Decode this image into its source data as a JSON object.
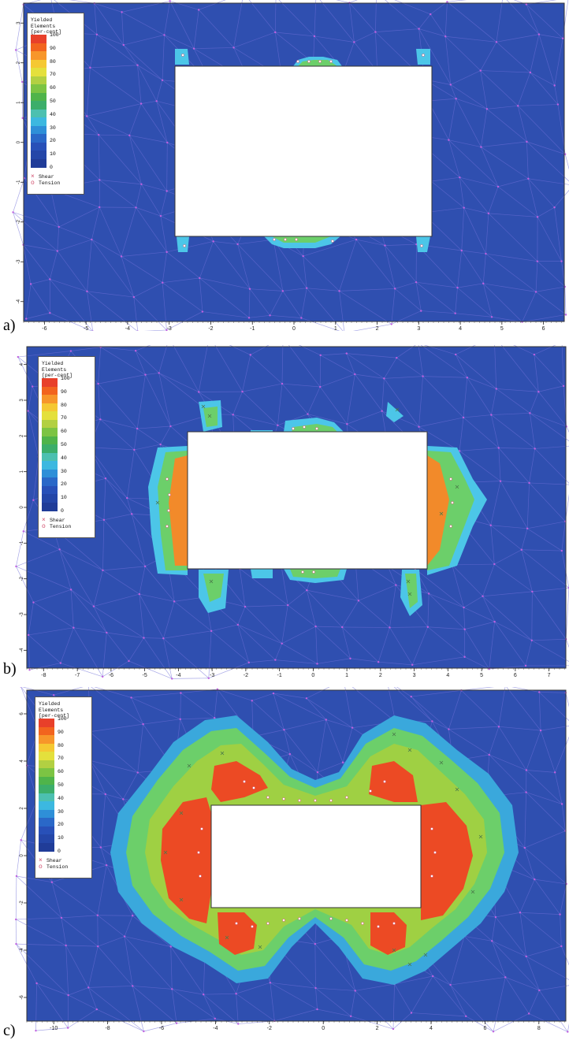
{
  "legend": {
    "title_lines": [
      "Yielded",
      "Elements",
      "[per-cent]"
    ],
    "ticks": [
      "100",
      "90",
      "80",
      "70",
      "60",
      "50",
      "40",
      "30",
      "20",
      "10",
      "0"
    ],
    "colors": [
      "#e8402a",
      "#f2641e",
      "#f7962a",
      "#f5c832",
      "#e4e03c",
      "#b2d042",
      "#7cc443",
      "#4fb44a",
      "#3cae6a",
      "#4cc0b0",
      "#3cb8e0",
      "#2e8fd8",
      "#2a68c8",
      "#2850b8",
      "#2446a8",
      "#203c98"
    ],
    "marker_shear": "Shear",
    "marker_tension": "Tension"
  },
  "chart_data": [
    {
      "type": "heatmap",
      "panel_label": "a)",
      "x_ticks": [
        "-6",
        "-5",
        "-4",
        "-3",
        "-2",
        "-1",
        "0",
        "1",
        "2",
        "3",
        "4",
        "5",
        "6"
      ],
      "y_ticks": [
        "3",
        "2",
        "1",
        "0",
        "-1",
        "-2",
        "-3",
        "-4"
      ],
      "opening": {
        "x": [
          -3,
          3
        ],
        "y": [
          -2,
          2
        ]
      },
      "yield_extent": "small zones at roof and floor centres and at the four corners"
    },
    {
      "type": "heatmap",
      "panel_label": "b)",
      "x_ticks": [
        "-8",
        "-7",
        "-6",
        "-5",
        "-4",
        "-3",
        "-2",
        "-1",
        "0",
        "1",
        "2",
        "3",
        "4",
        "5",
        "6",
        "7"
      ],
      "y_ticks": [
        "4",
        "3",
        "2",
        "1",
        "0",
        "-1",
        "-2",
        "-3",
        "-4"
      ],
      "opening": {
        "x": [
          -3.5,
          3.5
        ],
        "y": [
          -2,
          2
        ]
      },
      "yield_extent": "full yield along both sidewalls with small zones above roof and below floor"
    },
    {
      "type": "heatmap",
      "panel_label": "c)",
      "x_ticks": [
        "-10",
        "-8",
        "-6",
        "-4",
        "-2",
        "0",
        "2",
        "4",
        "6",
        "8"
      ],
      "y_ticks": [
        "6",
        "4",
        "2",
        "0",
        "-2",
        "-4",
        "-6"
      ],
      "opening": {
        "x": [
          -4,
          4
        ],
        "y": [
          -2,
          2
        ]
      },
      "yield_extent": "large butterfly-shaped yield zone around the whole opening"
    }
  ]
}
